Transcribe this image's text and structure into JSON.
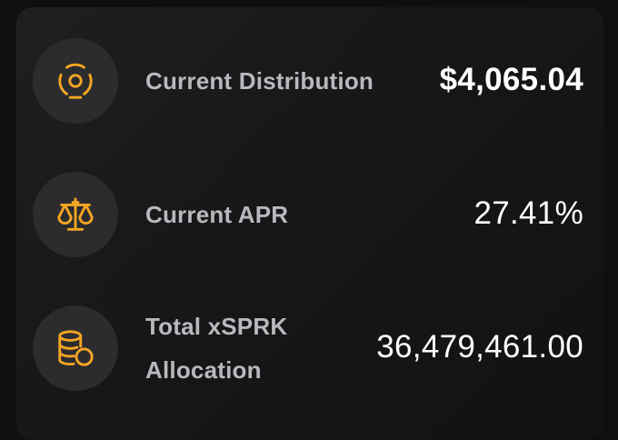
{
  "stats": [
    {
      "icon": "distribution-icon",
      "label": "Current Distribution",
      "value": "$4,065.04"
    },
    {
      "icon": "scale-icon",
      "label": "Current APR",
      "value": "27.41%"
    },
    {
      "icon": "coins-icon",
      "label": "Total xSPRK Allocation",
      "value": "36,479,461.00"
    }
  ],
  "colors": {
    "accent": "#f5a623",
    "label": "#b9b9bd",
    "value": "#ffffff",
    "icon_bg": "#2c2c2f"
  }
}
